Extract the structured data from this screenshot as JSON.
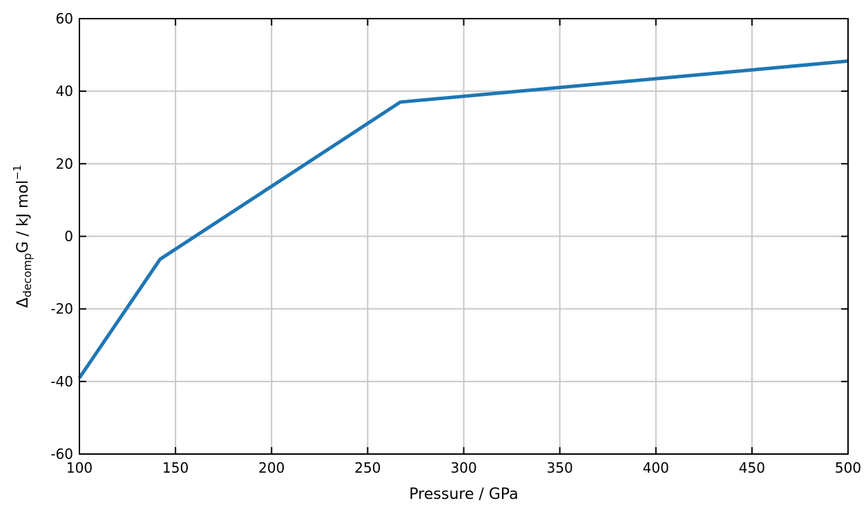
{
  "chart_data": {
    "type": "line",
    "title": "",
    "xlabel": "Pressure / GPa",
    "ylabel": {
      "main": "Δ",
      "sub": "decomp",
      "rest": "G / kJ mol",
      "sup": "−1"
    },
    "xlim": [
      100,
      500
    ],
    "ylim": [
      -60,
      60
    ],
    "xticks": [
      100,
      150,
      200,
      250,
      300,
      350,
      400,
      450,
      500
    ],
    "yticks": [
      -60,
      -40,
      -20,
      0,
      20,
      40,
      60
    ],
    "grid": true,
    "series": [
      {
        "color": "#1f77b4",
        "x": [
          100,
          142,
          267,
          500
        ],
        "y": [
          -39,
          -6.3,
          37,
          48.3
        ]
      }
    ]
  }
}
